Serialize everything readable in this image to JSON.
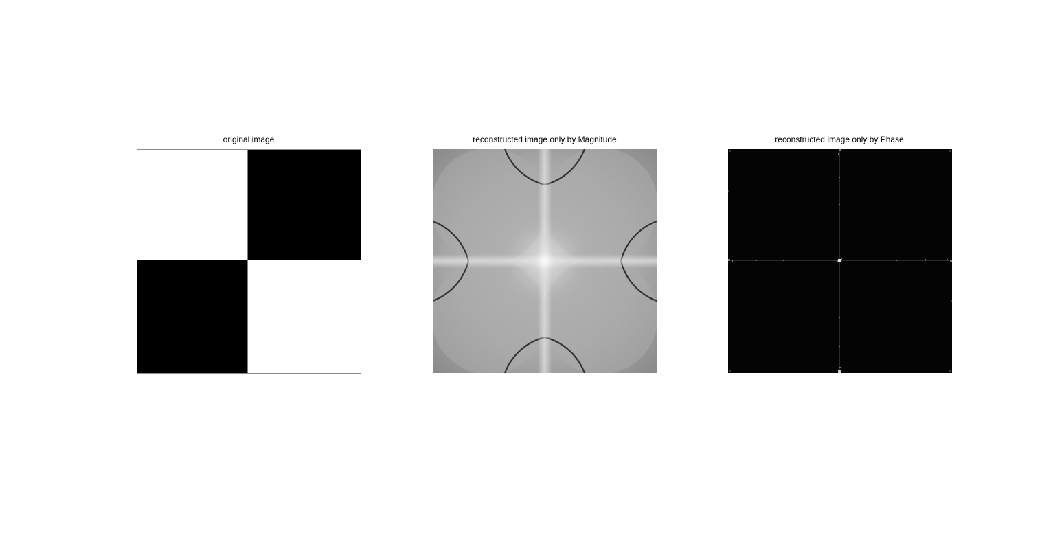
{
  "figure": {
    "panels": [
      {
        "title": "original image",
        "content": "2x2 checkerboard: top-left white, top-right black, bottom-left black, bottom-right white"
      },
      {
        "title": "reconstructed image only by Magnitude",
        "content": "grayscale four-lobed pattern, bright cross at center, dark circular arcs"
      },
      {
        "title": "reconstructed image only by Phase",
        "content": "almost entirely black with faint bright lines along center cross"
      }
    ]
  }
}
